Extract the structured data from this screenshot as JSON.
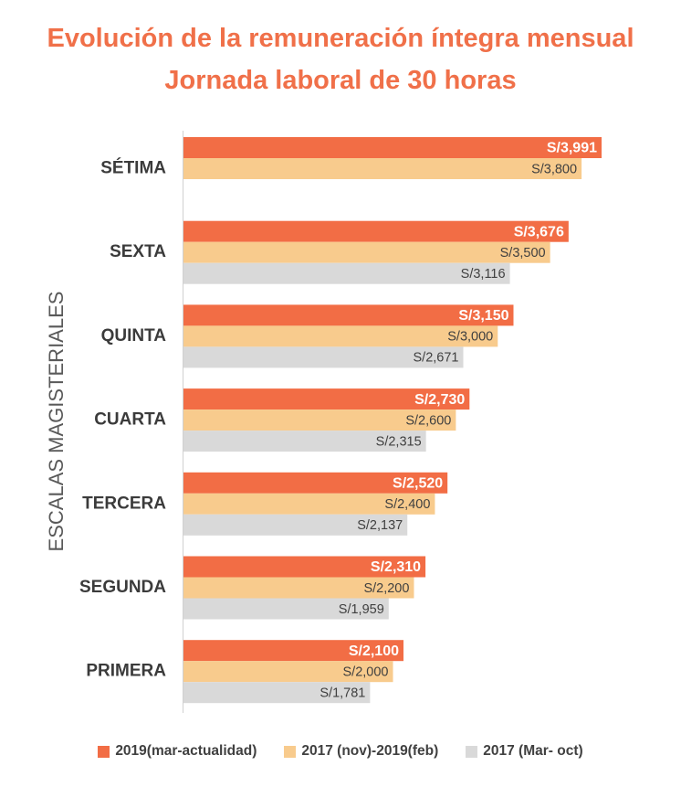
{
  "title_line1": "Evolución de la remuneración íntegra mensual",
  "title_line2": "Jornada laboral de 30 horas",
  "chart_data": {
    "type": "bar",
    "orientation": "horizontal",
    "ylabel": "ESCALAS MAGISTERIALES",
    "categories": [
      "SÉTIMA",
      "SEXTA",
      "QUINTA",
      "CUARTA",
      "TERCERA",
      "SEGUNDA",
      "PRIMERA"
    ],
    "series": [
      {
        "name": "2019(mar-actualidad)",
        "color": "#f26d45",
        "values": [
          3991,
          3676,
          3150,
          2730,
          2520,
          2310,
          2100
        ],
        "labels": [
          "S/3,991",
          "S/3,676",
          "S/3,150",
          "S/2,730",
          "S/2,520",
          "S/2,310",
          "S/2,100"
        ]
      },
      {
        "name": "2017 (nov)-2019(feb)",
        "color": "#f8cb8d",
        "values": [
          3800,
          3500,
          3000,
          2600,
          2400,
          2200,
          2000
        ],
        "labels": [
          "S/3,800",
          "S/3,500",
          "S/3,000",
          "S/2,600",
          "S/2,400",
          "S/2,200",
          "S/2,000"
        ]
      },
      {
        "name": "2017 (Mar- oct)",
        "color": "#d9d9d9",
        "values": [
          null,
          3116,
          2671,
          2315,
          2137,
          1959,
          1781
        ],
        "labels": [
          "",
          "S/3,116",
          "S/2,671",
          "S/2,315",
          "S/2,137",
          "S/1,959",
          "S/1,781"
        ]
      }
    ],
    "legend_position": "bottom",
    "grid": false
  }
}
